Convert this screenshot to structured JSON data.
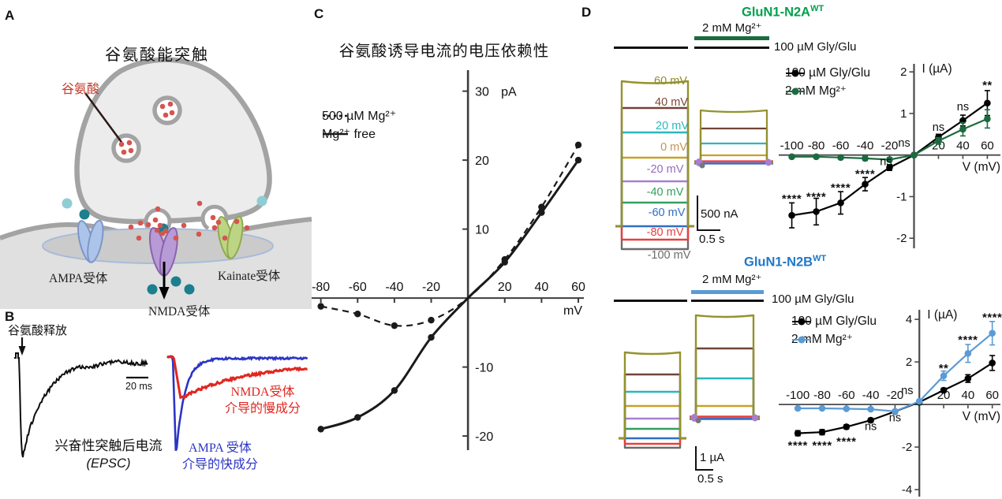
{
  "panelA": {
    "label": "A",
    "title": "谷氨酸能突触",
    "glutamate_label": "谷氨酸",
    "receptors": {
      "ampa": "AMPA受体",
      "nmda": "NMDA受体",
      "kainate": "Kainate受体"
    },
    "colors": {
      "glutamate_dot": "#d6554e",
      "ion_dark": "#1b7f8e",
      "ion_light": "#8fcdd4",
      "terminal_fill": "#ececec",
      "membrane_stroke": "#a3a3a3",
      "ampa_fill": "#adc4ea",
      "nmda_fill": "#b79ad6",
      "kainate_fill": "#bcd584"
    }
  },
  "panelB": {
    "label": "B",
    "release_label": "谷氨酸释放",
    "timescale_label": "20 ms",
    "epsc_label": "兴奋性突触后电流",
    "epsc_sub": "(EPSC)",
    "nmda_slow_label_1": "NMDA受体",
    "nmda_slow_label_2": "介导的慢成分",
    "ampa_fast_label_1": "AMPA 受体",
    "ampa_fast_label_2": "介导的快成分",
    "colors": {
      "epsc_trace": "#0d0d0d",
      "ampa_trace": "#2b35c4",
      "nmda_trace": "#e02720"
    }
  },
  "panelC": {
    "label": "C",
    "title": "谷氨酸诱导电流的电压依赖性"
  },
  "panelD": {
    "label": "D",
    "n2a": {
      "title": "GluN1-N2A",
      "title_sup": "WT",
      "title_color": "#00a14b",
      "mg_bar_label": "2 mM Mg²⁺",
      "agonist_bar_label": "100 µM Gly/Glu",
      "bar_color": "#1c6b40",
      "scale_current": "500 nA",
      "scale_time": "0.5 s"
    },
    "n2b": {
      "title": "GluN1-N2B",
      "title_sup": "WT",
      "title_color": "#2078c8",
      "mg_bar_label": "2 mM Mg²⁺",
      "agonist_bar_label": "100 µM Gly/Glu",
      "bar_color": "#5b9bd5",
      "scale_current": "1 µA",
      "scale_time": "0.5 s"
    },
    "voltage_steps": [
      {
        "label": "60 mV",
        "color": "#8f8d2b",
        "trace_color": "#94922d"
      },
      {
        "label": "40 mV",
        "color": "#7a4a35",
        "trace_color": "#714339"
      },
      {
        "label": "20 mV",
        "color": "#29b8bc",
        "trace_color": "#29b8bc"
      },
      {
        "label": "0 mV",
        "color": "#c49455",
        "trace_color": "#c9a126"
      },
      {
        "label": "-20 mV",
        "color": "#9a6bc0",
        "trace_color": "#a77fd0"
      },
      {
        "label": "-40 mV",
        "color": "#33a05f",
        "trace_color": "#33a05f"
      },
      {
        "label": "-60 mV",
        "color": "#2f6fc1",
        "trace_color": "#2f6fc1"
      },
      {
        "label": "-80 mV",
        "color": "#e8403e",
        "trace_color": "#e8403e"
      },
      {
        "label": "-100 mV",
        "color": "#6b6b6b",
        "trace_color": "#6b6b6b"
      }
    ]
  },
  "chart_data": [
    {
      "id": "voltage-dependence-iv",
      "panel": "C",
      "type": "line",
      "title": "谷氨酸诱导电流的电压依赖性",
      "xlabel": "mV",
      "ylabel": "pA",
      "xlim": [
        -85,
        63
      ],
      "ylim": [
        -22.5,
        33.5
      ],
      "xticks": [
        -80,
        -60,
        -40,
        -20,
        20,
        40,
        60
      ],
      "yticks": [
        -20,
        -10,
        10,
        20,
        30
      ],
      "grid": false,
      "legend_position": "upper-left",
      "series": [
        {
          "name": "500 µM Mg²⁺",
          "style": "dashed",
          "color": "#1a1a1a",
          "x": [
            -80,
            -60,
            -40,
            -20,
            0,
            20,
            40,
            60
          ],
          "y": [
            -1.2,
            -2.3,
            -4.0,
            -3.2,
            0,
            5.6,
            13.2,
            22.2
          ]
        },
        {
          "name": "Mg²⁺ free",
          "style": "solid",
          "color": "#1a1a1a",
          "x": [
            -80,
            -60,
            -40,
            -20,
            0,
            20,
            40,
            60
          ],
          "y": [
            -19.0,
            -17.3,
            -13.4,
            -5.7,
            0,
            5.2,
            12.4,
            20.0
          ]
        }
      ]
    },
    {
      "id": "glun1-n2a-iv",
      "panel": "D-top",
      "type": "line",
      "title": "GluN1-N2A WT",
      "xlabel": "V (mV)",
      "ylabel": "I (µA)",
      "xlim": [
        -112,
        72
      ],
      "ylim": [
        -2.3,
        2.25
      ],
      "xticks": [
        -100,
        -80,
        -60,
        -40,
        -20,
        20,
        40,
        60
      ],
      "yticks": [
        -2,
        -1,
        1,
        2
      ],
      "grid": false,
      "legend_position": "upper-left",
      "series": [
        {
          "name": "100 µM Gly/Glu",
          "color": "#000000",
          "marker": "circle",
          "x": [
            -100,
            -80,
            -60,
            -40,
            -20,
            0,
            20,
            40,
            60
          ],
          "y": [
            -1.45,
            -1.36,
            -1.15,
            -0.7,
            -0.3,
            0,
            0.43,
            0.83,
            1.25
          ],
          "err": [
            0.3,
            0.32,
            0.27,
            0.16,
            0.07,
            0.03,
            0.07,
            0.13,
            0.3
          ]
        },
        {
          "name": "2 mM Mg²⁺",
          "color": "#1c6b40",
          "marker": "circle",
          "x": [
            -100,
            -80,
            -60,
            -40,
            -20,
            0,
            20,
            40,
            60
          ],
          "y": [
            -0.04,
            -0.04,
            -0.06,
            -0.08,
            -0.11,
            0,
            0.34,
            0.62,
            0.87
          ],
          "err": [
            0.04,
            0.04,
            0.04,
            0.05,
            0.05,
            0.02,
            0.08,
            0.16,
            0.22
          ]
        }
      ],
      "annotations": [
        {
          "x": -100,
          "y": -1.05,
          "text": "****"
        },
        {
          "x": -80,
          "y": -1.0,
          "text": "****"
        },
        {
          "x": -60,
          "y": -0.78,
          "text": "****"
        },
        {
          "x": -40,
          "y": -0.45,
          "text": "****"
        },
        {
          "x": -23,
          "y": -0.17,
          "text": "ns"
        },
        {
          "x": -8,
          "y": 0.28,
          "text": "ns"
        },
        {
          "x": 20,
          "y": 0.66,
          "text": "ns"
        },
        {
          "x": 40,
          "y": 1.15,
          "text": "ns"
        },
        {
          "x": 60,
          "y": 1.68,
          "text": "**"
        }
      ]
    },
    {
      "id": "glun1-n2b-iv",
      "panel": "D-bottom",
      "type": "line",
      "title": "GluN1-N2B WT",
      "xlabel": "V (mV)",
      "ylabel": "I (µA)",
      "xlim": [
        -117,
        68
      ],
      "ylim": [
        -4.44,
        4.56
      ],
      "xticks": [
        -100,
        -80,
        -60,
        -40,
        -20,
        20,
        40,
        60
      ],
      "yticks": [
        -4,
        -2,
        2,
        4
      ],
      "grid": false,
      "legend_position": "upper-left",
      "series": [
        {
          "name": "100 µM Gly/Glu",
          "color": "#000000",
          "marker": "circle",
          "x": [
            -100,
            -80,
            -60,
            -40,
            -20,
            0,
            20,
            40,
            60
          ],
          "y": [
            -1.35,
            -1.3,
            -1.05,
            -0.74,
            -0.33,
            0.11,
            0.67,
            1.22,
            1.95
          ],
          "err": [
            0.12,
            0.12,
            0.1,
            0.09,
            0.06,
            0.05,
            0.1,
            0.18,
            0.35
          ]
        },
        {
          "name": "2 mM Mg²⁺",
          "color": "#5b9bd5",
          "marker": "circle",
          "x": [
            -100,
            -80,
            -60,
            -40,
            -20,
            0,
            20,
            40,
            60
          ],
          "y": [
            -0.18,
            -0.18,
            -0.2,
            -0.22,
            -0.32,
            0.15,
            1.35,
            2.4,
            3.35
          ],
          "err": [
            0.05,
            0.05,
            0.05,
            0.06,
            0.08,
            0.06,
            0.22,
            0.42,
            0.55
          ]
        }
      ],
      "annotations": [
        {
          "x": -100,
          "y": -1.93,
          "text": "****"
        },
        {
          "x": -80,
          "y": -1.93,
          "text": "****"
        },
        {
          "x": -60,
          "y": -1.74,
          "text": "****"
        },
        {
          "x": -40,
          "y": -1.05,
          "text": "ns"
        },
        {
          "x": -20,
          "y": -0.64,
          "text": "ns"
        },
        {
          "x": -10,
          "y": 0.63,
          "text": "ns"
        },
        {
          "x": 20,
          "y": 1.7,
          "text": "**"
        },
        {
          "x": 40,
          "y": 3.05,
          "text": "****"
        },
        {
          "x": 60,
          "y": 4.1,
          "text": "****"
        }
      ]
    }
  ]
}
